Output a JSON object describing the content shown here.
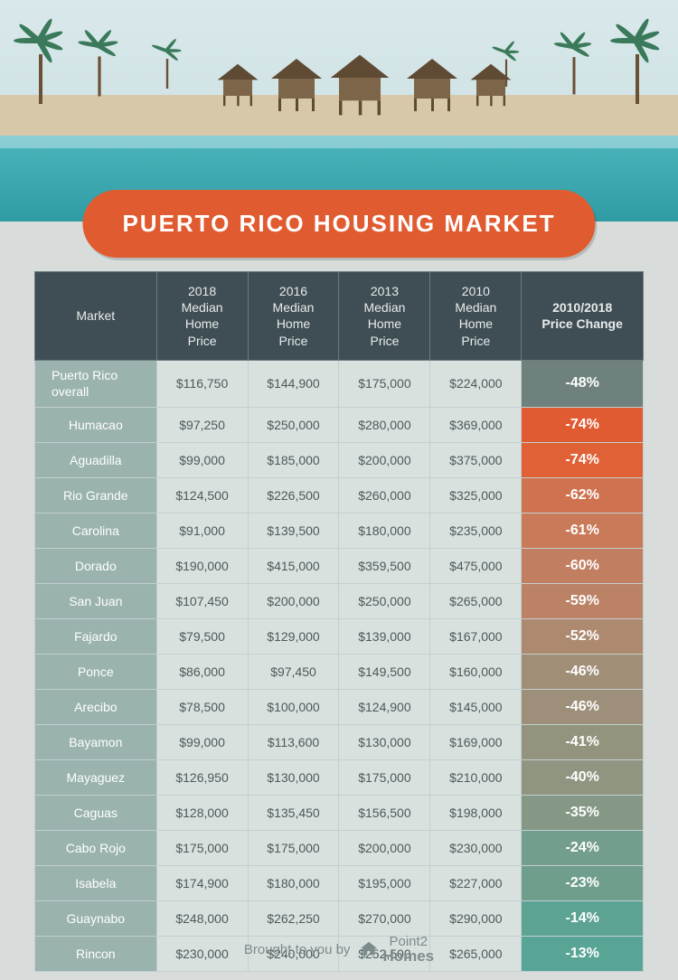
{
  "title": "PUERTO RICO HOUSING MARKET",
  "footer_text": "Brought to you by",
  "footer_brand_top": "Point2",
  "footer_brand_bottom": "Homes",
  "colors": {
    "pill_bg": "#e15b30",
    "header_bg": "#3f4e55",
    "market_col_bg": "#9ab3af",
    "price_cell_bg": "#d9e1df",
    "page_bg": "#d8dcdb"
  },
  "table": {
    "columns": [
      {
        "key": "market",
        "label": "Market"
      },
      {
        "key": "y2018",
        "label": "2018\nMedian\nHome\nPrice"
      },
      {
        "key": "y2016",
        "label": "2016\nMedian\nHome\nPrice"
      },
      {
        "key": "y2013",
        "label": "2013\nMedian\nHome\nPrice"
      },
      {
        "key": "y2010",
        "label": "2010\nMedian\nHome\nPrice"
      },
      {
        "key": "change",
        "label": "2010/2018\nPrice Change"
      }
    ],
    "rows": [
      {
        "market": "Puerto Rico overall",
        "y2018": "$116,750",
        "y2016": "$144,900",
        "y2013": "$175,000",
        "y2010": "$224,000",
        "change": "-48%",
        "change_bg": "#6e817c",
        "overall": true
      },
      {
        "market": "Humacao",
        "y2018": "$97,250",
        "y2016": "$250,000",
        "y2013": "$280,000",
        "y2010": "$369,000",
        "change": "-74%",
        "change_bg": "#e15b32"
      },
      {
        "market": "Aguadilla",
        "y2018": "$99,000",
        "y2016": "$185,000",
        "y2013": "$200,000",
        "y2010": "$375,000",
        "change": "-74%",
        "change_bg": "#e06136"
      },
      {
        "market": "Rio Grande",
        "y2018": "$124,500",
        "y2016": "$226,500",
        "y2013": "$260,000",
        "y2010": "$325,000",
        "change": "-62%",
        "change_bg": "#cf7250"
      },
      {
        "market": "Carolina",
        "y2018": "$91,000",
        "y2016": "$139,500",
        "y2013": "$180,000",
        "y2010": "$235,000",
        "change": "-61%",
        "change_bg": "#c97a59"
      },
      {
        "market": "Dorado",
        "y2018": "$190,000",
        "y2016": "$415,000",
        "y2013": "$359,500",
        "y2010": "$475,000",
        "change": "-60%",
        "change_bg": "#c27e60"
      },
      {
        "market": "San Juan",
        "y2018": "$107,450",
        "y2016": "$200,000",
        "y2013": "$250,000",
        "y2010": "$265,000",
        "change": "-59%",
        "change_bg": "#bb8266"
      },
      {
        "market": "Fajardo",
        "y2018": "$79,500",
        "y2016": "$129,000",
        "y2013": "$139,000",
        "y2010": "$167,000",
        "change": "-52%",
        "change_bg": "#ad896f"
      },
      {
        "market": "Ponce",
        "y2018": "$86,000",
        "y2016": "$97,450",
        "y2013": "$149,500",
        "y2010": "$160,000",
        "change": "-46%",
        "change_bg": "#a08e77"
      },
      {
        "market": "Arecibo",
        "y2018": "$78,500",
        "y2016": "$100,000",
        "y2013": "$124,900",
        "y2010": "$145,000",
        "change": "-46%",
        "change_bg": "#9d8f79"
      },
      {
        "market": "Bayamon",
        "y2018": "$99,000",
        "y2016": "$113,600",
        "y2013": "$130,000",
        "y2010": "$169,000",
        "change": "-41%",
        "change_bg": "#93937e"
      },
      {
        "market": "Mayaguez",
        "y2018": "$126,950",
        "y2016": "$130,000",
        "y2013": "$175,000",
        "y2010": "$210,000",
        "change": "-40%",
        "change_bg": "#8f9581"
      },
      {
        "market": "Caguas",
        "y2018": "$128,000",
        "y2016": "$135,450",
        "y2013": "$156,500",
        "y2010": "$198,000",
        "change": "-35%",
        "change_bg": "#859885"
      },
      {
        "market": "Cabo Rojo",
        "y2018": "$175,000",
        "y2016": "$175,000",
        "y2013": "$200,000",
        "y2010": "$230,000",
        "change": "-24%",
        "change_bg": "#739d8c"
      },
      {
        "market": "Isabela",
        "y2018": "$174,900",
        "y2016": "$180,000",
        "y2013": "$195,000",
        "y2010": "$227,000",
        "change": "-23%",
        "change_bg": "#6f9e8d"
      },
      {
        "market": "Guaynabo",
        "y2018": "$248,000",
        "y2016": "$262,250",
        "y2013": "$270,000",
        "y2010": "$290,000",
        "change": "-14%",
        "change_bg": "#5da394"
      },
      {
        "market": "Rincon",
        "y2018": "$230,000",
        "y2016": "$240,000",
        "y2013": "$252,500",
        "y2010": "$265,000",
        "change": "-13%",
        "change_bg": "#58a596"
      }
    ]
  }
}
